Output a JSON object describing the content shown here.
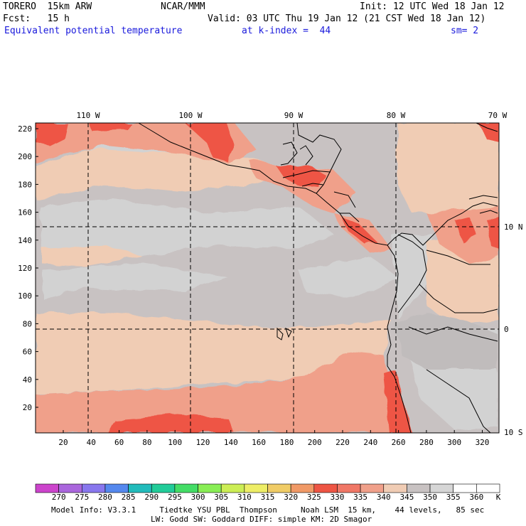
{
  "header": {
    "model": "TORERO  15km ARW",
    "center": "NCAR/MMM",
    "init": "Init: 12 UTC Wed 18 Jan 12",
    "fcst": "Fcst:   15 h",
    "valid": "Valid: 03 UTC Thu 19 Jan 12 (21 CST Wed 18 Jan 12)",
    "field": "Equivalent potential temperature",
    "level": "at k-index =  44",
    "smooth": "sm= 2"
  },
  "map": {
    "lon_labels": [
      "110 W",
      "100 W",
      "90 W",
      "80 W",
      "70 W"
    ],
    "lat_labels": [
      "10 N",
      "0",
      "10 S"
    ],
    "y_ticks": [
      "220",
      "200",
      "180",
      "160",
      "140",
      "120",
      "100",
      "80",
      "60",
      "40",
      "20"
    ],
    "x_ticks": [
      "20",
      "40",
      "60",
      "80",
      "100",
      "120",
      "140",
      "160",
      "180",
      "200",
      "220",
      "240",
      "260",
      "280",
      "300",
      "320"
    ]
  },
  "colorbar": {
    "unit": "K",
    "labels": [
      "270",
      "275",
      "280",
      "285",
      "290",
      "295",
      "300",
      "305",
      "310",
      "315",
      "320",
      "325",
      "330",
      "335",
      "340",
      "345",
      "350",
      "355",
      "360"
    ],
    "colors": [
      "#cc44cc",
      "#aa66dd",
      "#8877ee",
      "#5588ee",
      "#22bbbb",
      "#22cc99",
      "#44dd66",
      "#88ee55",
      "#ccee55",
      "#eeee66",
      "#f0cc66",
      "#f09966",
      "#ee5544",
      "#f07766",
      "#f0a08a",
      "#f0ccb4",
      "#c8c2c2",
      "#d6d6d6",
      "#ffffff"
    ]
  },
  "footer": {
    "line1": "Model Info: V3.3.1     Tiedtke YSU PBL  Thompson     Noah LSM  15 km,    44 levels,   85 sec",
    "line2": "LW: Godd SW: Goddard DIFF: simple KM: 2D Smagor"
  }
}
